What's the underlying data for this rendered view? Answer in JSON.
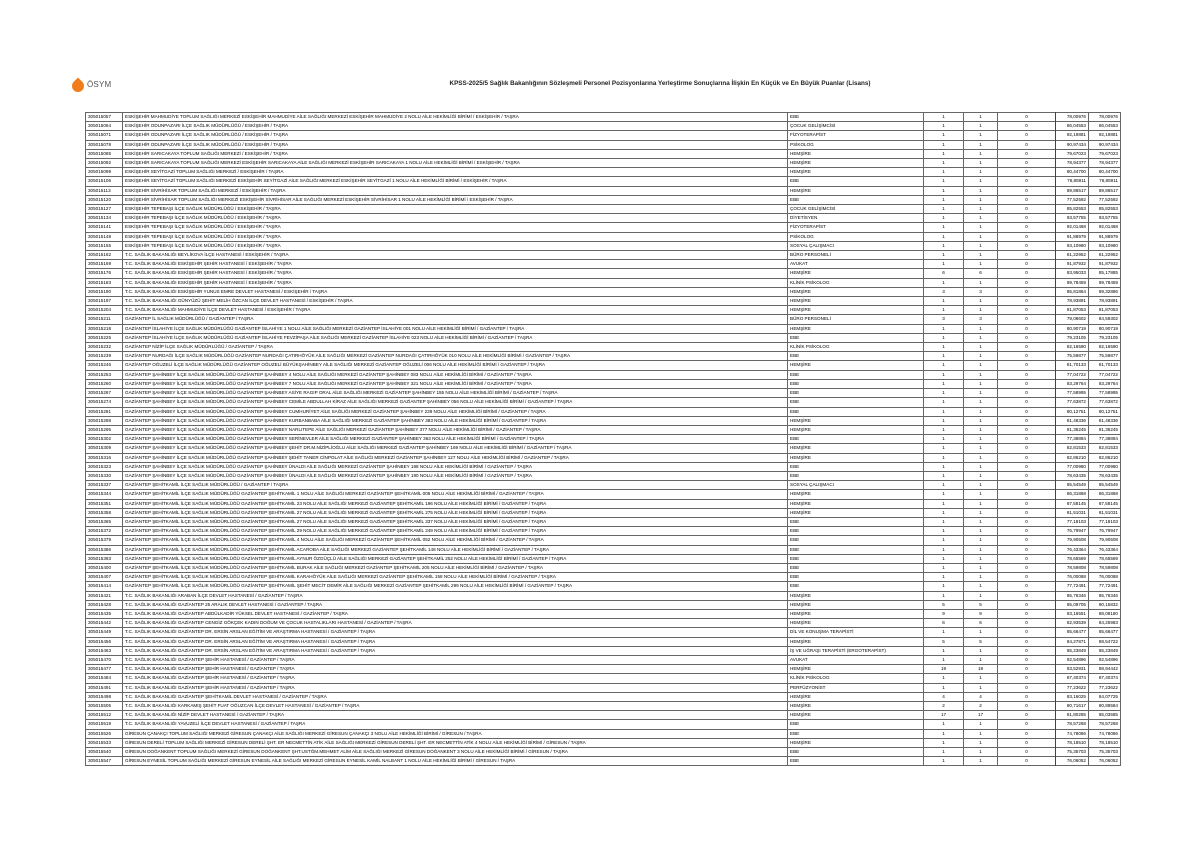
{
  "header": {
    "logo_text": "ÖSYM",
    "title": "KPSS-2025/5 Sağlık Bakanlığının Sözleşmeli Personel Pozisyonlarına Yerleştirme Sonuçlarına İlişkin En Küçük ve En Büyük Puanlar (Lisans)",
    "brand_color": "#f07c1c"
  },
  "rows": [
    [
      "305015057",
      "ESKİŞEHİR MAHMUDİYE TOPLUM SAĞLIĞI MERKEZİ ESKİŞEHİR MAHMUDİYE AİLE SAĞLIĞI MERKEZİ ESKİŞEHİR MAHMUDİYE 2 NOLU AİLE HEKİMLİĞİ BİRİMİ / ESKİŞEHİR / TAŞRA",
      "EBE",
      "1",
      "1",
      "0",
      "78,00976",
      "78,00976"
    ],
    [
      "305015064",
      "ESKİŞEHİR ODUNPAZARI İLÇE SAĞLIK MÜDÜRLÜĞÜ / ESKİŞEHİR / TAŞRA",
      "ÇOCUK GELİŞİMCİSİ",
      "1",
      "1",
      "0",
      "86,04553",
      "86,04553"
    ],
    [
      "305015071",
      "ESKİŞEHİR ODUNPAZARI İLÇE SAĞLIK MÜDÜRLÜĞÜ / ESKİŞEHİR / TAŞRA",
      "FİZYOTERAPİST",
      "1",
      "1",
      "0",
      "92,19881",
      "92,19881"
    ],
    [
      "305015078",
      "ESKİŞEHİR ODUNPAZARI İLÇE SAĞLIK MÜDÜRLÜĞÜ / ESKİŞEHİR / TAŞRA",
      "PSİKOLOG",
      "1",
      "1",
      "0",
      "90,97434",
      "90,97434"
    ],
    [
      "305015085",
      "ESKİŞEHİR SARICAKAYA TOPLUM SAĞLIĞI MERKEZİ / ESKİŞEHİR / TAŞRA",
      "HEMŞİRE",
      "1",
      "1",
      "0",
      "79,67023",
      "79,67023"
    ],
    [
      "305015092",
      "ESKİŞEHİR SARICAKAYA TOPLUM SAĞLIĞI MERKEZİ ESKİŞEHİR SARICAKAYA AİLE SAĞLIĞI MERKEZİ ESKİŞEHİR SARICAKAYA 1 NOLU AİLE HEKİMLİĞİ BİRİMİ / ESKİŞEHİR / TAŞRA",
      "HEMŞİRE",
      "1",
      "1",
      "0",
      "78,94377",
      "78,94377"
    ],
    [
      "305015099",
      "ESKİŞEHİR SEYİTGAZİ TOPLUM SAĞLIĞI MERKEZİ / ESKİŞEHİR / TAŞRA",
      "HEMŞİRE",
      "1",
      "1",
      "0",
      "80,44700",
      "80,44700"
    ],
    [
      "305015106",
      "ESKİŞEHİR SEYİTGAZİ TOPLUM SAĞLIĞI MERKEZİ ESKİŞEHİR SEYİTGAZİ AİLE SAĞLIĞI MERKEZİ ESKİŞEHİR SEYİTGAZİ 1 NOLU AİLE HEKİMLİĞİ BİRİMİ / ESKİŞEHİR / TAŞRA",
      "EBE",
      "1",
      "1",
      "0",
      "76,85911",
      "76,85911"
    ],
    [
      "305015113",
      "ESKİŞEHİR SİVRİHİSAR TOPLUM SAĞLIĞI MERKEZİ / ESKİŞEHİR / TAŞRA",
      "HEMŞİRE",
      "1",
      "1",
      "0",
      "89,86517",
      "89,86517"
    ],
    [
      "305015120",
      "ESKİŞEHİR SİVRİHİSAR TOPLUM SAĞLIĞI MERKEZİ ESKİŞEHİR SİVRİHİSAR AİLE SAĞLIĞI MERKEZİ ESKİŞEHİR SİVRİHİSAR 1 NOLU AİLE HEKİMLİĞİ BİRİMİ / ESKİŞEHİR / TAŞRA",
      "EBE",
      "1",
      "1",
      "0",
      "77,52592",
      "77,52592"
    ],
    [
      "305015127",
      "ESKİŞEHİR TEPEBAŞI İLÇE SAĞLIK MÜDÜRLÜĞÜ / ESKİŞEHİR / TAŞRA",
      "ÇOCUK GELİŞİMCİSİ",
      "1",
      "1",
      "0",
      "85,82553",
      "85,82553"
    ],
    [
      "305015134",
      "ESKİŞEHİR TEPEBAŞI İLÇE SAĞLIK MÜDÜRLÜĞÜ / ESKİŞEHİR / TAŞRA",
      "DİYETİSYEN",
      "1",
      "1",
      "0",
      "93,57755",
      "93,57755"
    ],
    [
      "305015141",
      "ESKİŞEHİR TEPEBAŞI İLÇE SAĞLIK MÜDÜRLÜĞÜ / ESKİŞEHİR / TAŞRA",
      "FİZYOTERAPİST",
      "1",
      "1",
      "0",
      "92,01468",
      "92,01468"
    ],
    [
      "305015148",
      "ESKİŞEHİR TEPEBAŞI İLÇE SAĞLIK MÜDÜRLÜĞÜ / ESKİŞEHİR / TAŞRA",
      "PSİKOLOG",
      "1",
      "1",
      "0",
      "91,88979",
      "91,88979"
    ],
    [
      "305015155",
      "ESKİŞEHİR TEPEBAŞI İLÇE SAĞLIK MÜDÜRLÜĞÜ / ESKİŞEHİR / TAŞRA",
      "SOSYAL ÇALIŞMACI",
      "1",
      "1",
      "0",
      "93,10980",
      "93,10980"
    ],
    [
      "305015162",
      "T.C. SAĞLIK BAKANLIĞI BEYLİKOVA İLÇE HASTANESİ / ESKİŞEHİR / TAŞRA",
      "BÜRO PERSONELİ",
      "1",
      "1",
      "0",
      "81,22952",
      "81,22952"
    ],
    [
      "305015169",
      "T.C. SAĞLIK BAKANLIĞI ESKİŞEHİR ŞEHİR HASTANESİ / ESKİŞEHİR / TAŞRA",
      "AVUKAT",
      "1",
      "1",
      "0",
      "91,87932",
      "91,87932"
    ],
    [
      "305015176",
      "T.C. SAĞLIK BAKANLIĞI ESKİŞEHİR ŞEHİR HASTANESİ / ESKİŞEHİR / TAŞRA",
      "HEMŞİRE",
      "6",
      "6",
      "0",
      "83,95033",
      "85,17885"
    ],
    [
      "305015183",
      "T.C. SAĞLIK BAKANLIĞI ESKİŞEHİR ŞEHİR HASTANESİ / ESKİŞEHİR / TAŞRA",
      "KLİNİK PSİKOLOG",
      "1",
      "1",
      "0",
      "89,78459",
      "89,78459"
    ],
    [
      "305015190",
      "T.C. SAĞLIK BAKANLIĞI ESKİŞEHİR YUNUS EMRE DEVLET HASTANESİ / ESKİŞEHİR / TAŞRA",
      "HEMŞİRE",
      "3",
      "3",
      "0",
      "85,81864",
      "89,32886"
    ],
    [
      "305015197",
      "T.C. SAĞLIK BAKANLIĞI GÜNYÜZÜ ŞEHİT MELİH ÖZCAN İLÇE DEVLET HASTANESİ / ESKİŞEHİR / TAŞRA",
      "HEMŞİRE",
      "1",
      "1",
      "0",
      "78,93891",
      "78,93891"
    ],
    [
      "305015204",
      "T.C. SAĞLIK BAKANLIĞI MAHMUDİYE İLÇE DEVLET HASTANESİ / ESKİŞEHİR / TAŞRA",
      "HEMŞİRE",
      "1",
      "1",
      "0",
      "81,87053",
      "81,87053"
    ],
    [
      "305015211",
      "GAZİANTEP İL SAĞLIK MÜDÜRLÜĞÜ / GAZİANTEP / TAŞRA",
      "BÜRO PERSONELİ",
      "3",
      "3",
      "0",
      "79,08602",
      "84,59302"
    ],
    [
      "305015218",
      "GAZİANTEP İSLAHİYE İLÇE SAĞLIK MÜDÜRLÜĞÜ GAZİANTEP İSLAHİYE 1 NOLU AİLE SAĞLIĞI MERKEZİ GAZİANTEP İSLAHİYE 001 NOLU AİLE HEKİMLİĞİ BİRİMİ / GAZİANTEP / TAŞRA",
      "HEMŞİRE",
      "1",
      "1",
      "0",
      "80,90719",
      "80,90719"
    ],
    [
      "305015225",
      "GAZİANTEP İSLAHİYE İLÇE SAĞLIK MÜDÜRLÜĞÜ GAZİANTEP İSLAHİYE FEVZİPAŞA AİLE SAĞLIĞI MERKEZİ GAZİANTEP İSLAHİYE 023 NOLU AİLE HEKİMLİĞİ BİRİMİ / GAZİANTEP / TAŞRA",
      "EBE",
      "1",
      "1",
      "0",
      "79,23105",
      "79,23105"
    ],
    [
      "305015232",
      "GAZİANTEP NİZİP İLÇE SAĞLIK MÜDÜRLÜĞÜ / GAZİANTEP / TAŞRA",
      "KLİNİK PSİKOLOG",
      "1",
      "1",
      "0",
      "82,16590",
      "82,16590"
    ],
    [
      "305015239",
      "GAZİANTEP NURDAĞI İLÇE SAĞLIK MÜDÜRLÜĞÜ GAZİANTEP NURDAĞI ÇATIRHÖYÜK AİLE SAĞLIĞI MERKEZİ GAZİANTEP NURDAĞI ÇATIRHÖYÜK 010 NOLU AİLE HEKİMLİĞİ BİRİMİ / GAZİANTEP / TAŞRA",
      "EBE",
      "1",
      "1",
      "0",
      "75,59877",
      "75,59877"
    ],
    [
      "305015246",
      "GAZİANTEP OĞUZELİ İLÇE SAĞLIK MÜDÜRLÜĞÜ GAZİANTEP OĞUZELİ BÜYÜKŞAHİNBEY AİLE SAĞLIĞI MERKEZİ GAZİANTEP OĞUZELİ 006 NOLU AİLE HEKİMLİĞİ BİRİMİ / GAZİANTEP / TAŞRA",
      "HEMŞİRE",
      "1",
      "1",
      "0",
      "81,70133",
      "81,70133"
    ],
    [
      "305015253",
      "GAZİANTEP ŞAHİNBEY İLÇE SAĞLIK MÜDÜRLÜĞÜ GAZİANTEP ŞAHİNBEY 4 NOLU AİLE SAĞLIĞI MERKEZİ GAZİANTEP ŞAHİNBEY 083 NOLU AİLE HEKİMLİĞİ BİRİMİ / GAZİANTEP / TAŞRA",
      "EBE",
      "1",
      "1",
      "0",
      "77,04722",
      "77,04722"
    ],
    [
      "305015260",
      "GAZİANTEP ŞAHİNBEY İLÇE SAĞLIK MÜDÜRLÜĞÜ GAZİANTEP ŞAHİNBEY 7 NOLU AİLE SAĞLIĞI MERKEZİ GAZİANTEP ŞAHİNBEY 321 NOLU AİLE HEKİMLİĞİ BİRİMİ / GAZİANTEP / TAŞRA",
      "EBE",
      "1",
      "1",
      "0",
      "83,29764",
      "83,29764"
    ],
    [
      "305015267",
      "GAZİANTEP ŞAHİNBEY İLÇE SAĞLIK MÜDÜRLÜĞÜ GAZİANTEP ŞAHİNBEY ASİYE RAGIP ORAL AİLE SAĞLIĞI MERKEZİ GAZİANTEP ŞAHİNBEY 155 NOLU AİLE HEKİMLİĞİ BİRİMİ / GAZİANTEP / TAŞRA",
      "EBE",
      "1",
      "1",
      "0",
      "77,58995",
      "77,58995"
    ],
    [
      "305015274",
      "GAZİANTEP ŞAHİNBEY İLÇE SAĞLIK MÜDÜRLÜĞÜ GAZİANTEP ŞAHİNBEY CEMİLE ABDULLAH KİRAZ AİLE SAĞLIĞI MERKEZİ GAZİANTEP ŞAHİNBEY 056 NOLU AİLE HEKİMLİĞİ BİRİMİ / GAZİANTEP / TAŞRA",
      "EBE",
      "1",
      "1",
      "0",
      "77,63872",
      "77,63872"
    ],
    [
      "305015281",
      "GAZİANTEP ŞAHİNBEY İLÇE SAĞLIK MÜDÜRLÜĞÜ GAZİANTEP ŞAHİNBEY CUMHURİYET AİLE SAĞLIĞI MERKEZİ GAZİANTEP ŞAHİNBEY 239 NOLU AİLE HEKİMLİĞİ BİRİMİ / GAZİANTEP / TAŞRA",
      "EBE",
      "1",
      "1",
      "0",
      "80,12751",
      "80,12751"
    ],
    [
      "305015288",
      "GAZİANTEP ŞAHİNBEY İLÇE SAĞLIK MÜDÜRLÜĞÜ GAZİANTEP ŞAHİNBEY KURBANBABA AİLE SAĞLIĞI MERKEZİ GAZİANTEP ŞAHİNBEY 383 NOLU AİLE HEKİMLİĞİ BİRİMİ / GAZİANTEP / TAŞRA",
      "HEMŞİRE",
      "1",
      "1",
      "0",
      "81,48336",
      "81,48336"
    ],
    [
      "305015295",
      "GAZİANTEP ŞAHİNBEY İLÇE SAĞLIK MÜDÜRLÜĞÜ GAZİANTEP ŞAHİNBEY NARLITEPE AİLE SAĞLIĞI MERKEZİ GAZİANTEP ŞAHİNBEY 377 NOLU AİLE HEKİMLİĞİ BİRİMİ / GAZİANTEP / TAŞRA",
      "HEMŞİRE",
      "1",
      "1",
      "0",
      "81,36245",
      "81,36245"
    ],
    [
      "305015302",
      "GAZİANTEP ŞAHİNBEY İLÇE SAĞLIK MÜDÜRLÜĞÜ GAZİANTEP ŞAHİNBEY SERİNEVLER AİLE SAĞLIĞI MERKEZİ GAZİANTEP ŞAHİNBEY 363 NOLU AİLE HEKİMLİĞİ BİRİMİ / GAZİANTEP / TAŞRA",
      "EBE",
      "1",
      "1",
      "0",
      "77,38894",
      "77,38894"
    ],
    [
      "305015309",
      "GAZİANTEP ŞAHİNBEY İLÇE SAĞLIK MÜDÜRLÜĞÜ GAZİANTEP ŞAHİNBEY ŞEHİT DR.M.NİZİPLİOĞLU AİLE SAĞLIĞI MERKEZİ GAZİANTEP ŞAHİNBEY 169 NOLU AİLE HEKİMLİĞİ BİRİMİ / GAZİANTEP / TAŞRA",
      "HEMŞİRE",
      "1",
      "1",
      "0",
      "82,81533",
      "82,81533"
    ],
    [
      "305015316",
      "GAZİANTEP ŞAHİNBEY İLÇE SAĞLIK MÜDÜRLÜĞÜ GAZİANTEP ŞAHİNBEY ŞEHİT TANER CİNPOLAT AİLE SAĞLIĞI MERKEZİ GAZİANTEP ŞAHİNBEY 127 NOLU AİLE HEKİMLİĞİ BİRİMİ / GAZİANTEP / TAŞRA",
      "HEMŞİRE",
      "1",
      "1",
      "0",
      "82,86210",
      "82,86210"
    ],
    [
      "305015323",
      "GAZİANTEP ŞAHİNBEY İLÇE SAĞLIK MÜDÜRLÜĞÜ GAZİANTEP ŞAHİNBEY ÜNALDI AİLE SAĞLIĞI MERKEZİ GAZİANTEP ŞAHİNBEY 188 NOLU AİLE HEKİMLİĞİ BİRİMİ / GAZİANTEP / TAŞRA",
      "EBE",
      "1",
      "1",
      "0",
      "77,00980",
      "77,00980"
    ],
    [
      "305015330",
      "GAZİANTEP ŞAHİNBEY İLÇE SAĞLIK MÜDÜRLÜĞÜ GAZİANTEP ŞAHİNBEY ÜNALDI AİLE SAĞLIĞI MERKEZİ GAZİANTEP ŞAHİNBEY 190 NOLU AİLE HEKİMLİĞİ BİRİMİ / GAZİANTEP / TAŞRA",
      "EBE",
      "1",
      "1",
      "0",
      "78,63435",
      "78,63435"
    ],
    [
      "305015337",
      "GAZİANTEP ŞEHİTKAMİL İLÇE SAĞLIK MÜDÜRLÜĞÜ / GAZİANTEP / TAŞRA",
      "SOSYAL ÇALIŞMACI",
      "1",
      "1",
      "0",
      "85,54549",
      "85,54549"
    ],
    [
      "305015344",
      "GAZİANTEP ŞEHİTKAMİL İLÇE SAĞLIK MÜDÜRLÜĞÜ GAZİANTEP ŞEHİTKAMİL 1 NOLU AİLE SAĞLIĞI MERKEZİ GAZİANTEP ŞEHİTKAMİL 006 NOLU AİLE HEKİMLİĞİ BİRİMİ / GAZİANTEP / TAŞRA",
      "HEMŞİRE",
      "1",
      "1",
      "0",
      "86,31868",
      "86,31868"
    ],
    [
      "305015351",
      "GAZİANTEP ŞEHİTKAMİL İLÇE SAĞLIK MÜDÜRLÜĞÜ GAZİANTEP ŞEHİTKAMİL 23 NOLU AİLE SAĞLIĞI MERKEZİ GAZİANTEP ŞEHİTKAMİL 196 NOLU AİLE HEKİMLİĞİ BİRİMİ / GAZİANTEP / TAŞRA",
      "HEMŞİRE",
      "1",
      "1",
      "0",
      "87,58145",
      "87,58145"
    ],
    [
      "305015358",
      "GAZİANTEP ŞEHİTKAMİL İLÇE SAĞLIK MÜDÜRLÜĞÜ GAZİANTEP ŞEHİTKAMİL 27 NOLU AİLE SAĞLIĞI MERKEZİ GAZİANTEP ŞEHİTKAMİL 275 NOLU AİLE HEKİMLİĞİ BİRİMİ / GAZİANTEP / TAŞRA",
      "HEMŞİRE",
      "1",
      "1",
      "0",
      "81,51031",
      "81,51031"
    ],
    [
      "305015365",
      "GAZİANTEP ŞEHİTKAMİL İLÇE SAĞLIK MÜDÜRLÜĞÜ GAZİANTEP ŞEHİTKAMİL 27 NOLU AİLE SAĞLIĞI MERKEZİ GAZİANTEP ŞEHİTKAMİL 337 NOLU AİLE HEKİMLİĞİ BİRİMİ / GAZİANTEP / TAŞRA",
      "EBE",
      "1",
      "1",
      "0",
      "77,18103",
      "77,18103"
    ],
    [
      "305015372",
      "GAZİANTEP ŞEHİTKAMİL İLÇE SAĞLIK MÜDÜRLÜĞÜ GAZİANTEP ŞEHİTKAMİL 29 NOLU AİLE SAĞLIĞI MERKEZİ GAZİANTEP ŞEHİTKAMİL 249 NOLU AİLE HEKİMLİĞİ BİRİMİ / GAZİANTEP / TAŞRA",
      "EBE",
      "1",
      "1",
      "0",
      "76,79947",
      "76,79947"
    ],
    [
      "305015379",
      "GAZİANTEP ŞEHİTKAMİL İLÇE SAĞLIK MÜDÜRLÜĞÜ GAZİANTEP ŞEHİTKAMİL 4 NOLU AİLE SAĞLIĞI MERKEZİ GAZİANTEP ŞEHİTKAMİL 052 NOLU AİLE HEKİMLİĞİ BİRİMİ / GAZİANTEP / TAŞRA",
      "EBE",
      "1",
      "1",
      "0",
      "79,90508",
      "79,90508"
    ],
    [
      "305015386",
      "GAZİANTEP ŞEHİTKAMİL İLÇE SAĞLIK MÜDÜRLÜĞÜ GAZİANTEP ŞEHİTKAMİL ACAROBA AİLE SAĞLIĞI MERKEZİ GAZİANTEP ŞEHİTKAMİL 148 NOLU AİLE HEKİMLİĞİ BİRİMİ / GAZİANTEP / TAŞRA",
      "EBE",
      "1",
      "1",
      "0",
      "76,43364",
      "76,43364"
    ],
    [
      "305015393",
      "GAZİANTEP ŞEHİTKAMİL İLÇE SAĞLIK MÜDÜRLÜĞÜ GAZİANTEP ŞEHİTKAMİL AYNUR ÖZGÜÇLÜ AİLE SAĞLIĞI MERKEZİ GAZİANTEP ŞEHİTKAMİL 252 NOLU AİLE HEKİMLİĞİ BİRİMİ / GAZİANTEP / TAŞRA",
      "EBE",
      "1",
      "1",
      "0",
      "78,65569",
      "78,65569"
    ],
    [
      "305015400",
      "GAZİANTEP ŞEHİTKAMİL İLÇE SAĞLIK MÜDÜRLÜĞÜ GAZİANTEP ŞEHİTKAMİL BURAK AİLE SAĞLIĞI MERKEZİ GAZİANTEP ŞEHİTKAMİL 205 NOLU AİLE HEKİMLİĞİ BİRİMİ / GAZİANTEP / TAŞRA",
      "EBE",
      "1",
      "1",
      "0",
      "78,59808",
      "78,59808"
    ],
    [
      "305015407",
      "GAZİANTEP ŞEHİTKAMİL İLÇE SAĞLIK MÜDÜRLÜĞÜ GAZİANTEP ŞEHİTKAMİL KARAHÖYÜK AİLE SAĞLIĞI MERKEZİ GAZİANTEP ŞEHİTKAMİL 158 NOLU AİLE HEKİMLİĞİ BİRİMİ / GAZİANTEP / TAŞRA",
      "EBE",
      "1",
      "1",
      "0",
      "76,00088",
      "76,00088"
    ],
    [
      "305015414",
      "GAZİANTEP ŞEHİTKAMİL İLÇE SAĞLIK MÜDÜRLÜĞÜ GAZİANTEP ŞEHİTKAMİL ŞEHİT MECİT DEMİR AİLE SAĞLIĞI MERKEZİ GAZİANTEP ŞEHİTKAMİL 299 NOLU AİLE HEKİMLİĞİ BİRİMİ / GAZİANTEP / TAŞRA",
      "EBE",
      "1",
      "1",
      "0",
      "77,72491",
      "77,72491"
    ],
    [
      "305015421",
      "T.C. SAĞLIK BAKANLIĞI ARABAN İLÇE DEVLET HASTANESİ / GAZİANTEP / TAŞRA",
      "HEMŞİRE",
      "1",
      "1",
      "0",
      "85,76346",
      "85,76346"
    ],
    [
      "305015428",
      "T.C. SAĞLIK BAKANLIĞI GAZİANTEP 25 ARALIK DEVLET HASTANESİ / GAZİANTEP / TAŞRA",
      "HEMŞİRE",
      "5",
      "5",
      "0",
      "85,09705",
      "90,15832"
    ],
    [
      "305015435",
      "T.C. SAĞLIK BAKANLIĞI GAZİANTEP ABDÜLKADİR YÜKSEL DEVLET HASTANESİ / GAZİANTEP / TAŞRA",
      "HEMŞİRE",
      "9",
      "9",
      "0",
      "83,16551",
      "88,08180"
    ],
    [
      "305015442",
      "T.C. SAĞLIK BAKANLIĞI GAZİANTEP CENGİZ GÖKÇEK KADIN DOĞUM VE ÇOCUK HASTALIKLARI HASTANESİ / GAZİANTEP / TAŞRA",
      "HEMŞİRE",
      "6",
      "6",
      "0",
      "82,93539",
      "84,25983"
    ],
    [
      "305015449",
      "T.C. SAĞLIK BAKANLIĞI GAZİANTEP DR. ERSİN ARSLAN EĞİTİM VE ARAŞTIRMA HASTANESİ / GAZİANTEP / TAŞRA",
      "DİL VE KONUŞMA TERAPİSTİ",
      "1",
      "1",
      "0",
      "85,66477",
      "85,66477"
    ],
    [
      "305015456",
      "T.C. SAĞLIK BAKANLIĞI GAZİANTEP DR. ERSİN ARSLAN EĞİTİM VE ARAŞTIRMA HASTANESİ / GAZİANTEP / TAŞRA",
      "HEMŞİRE",
      "5",
      "5",
      "0",
      "84,27871",
      "88,54722"
    ],
    [
      "305015463",
      "T.C. SAĞLIK BAKANLIĞI GAZİANTEP DR. ERSİN ARSLAN EĞİTİM VE ARAŞTIRMA HASTANESİ / GAZİANTEP / TAŞRA",
      "İŞ VE UĞRAŞI TERAPİSTİ (ERGOTERAPİST)",
      "1",
      "1",
      "0",
      "85,23849",
      "85,23849"
    ],
    [
      "305015470",
      "T.C. SAĞLIK BAKANLIĞI GAZİANTEP ŞEHİR HASTANESİ / GAZİANTEP / TAŞRA",
      "AVUKAT",
      "1",
      "1",
      "0",
      "92,54896",
      "92,54896"
    ],
    [
      "305015477",
      "T.C. SAĞLIK BAKANLIĞI GAZİANTEP ŞEHİR HASTANESİ / GAZİANTEP / TAŞRA",
      "HEMŞİRE",
      "19",
      "19",
      "0",
      "83,52931",
      "88,94442"
    ],
    [
      "305015484",
      "T.C. SAĞLIK BAKANLIĞI GAZİANTEP ŞEHİR HASTANESİ / GAZİANTEP / TAŞRA",
      "KLİNİK PSİKOLOG",
      "1",
      "1",
      "0",
      "87,40374",
      "87,40374"
    ],
    [
      "305015491",
      "T.C. SAĞLIK BAKANLIĞI GAZİANTEP ŞEHİR HASTANESİ / GAZİANTEP / TAŞRA",
      "PERFÜZYONİST",
      "1",
      "1",
      "0",
      "77,23622",
      "77,23622"
    ],
    [
      "305015498",
      "T.C. SAĞLIK BAKANLIĞI GAZİANTEP ŞEHİTKAMİL DEVLET HASTANESİ / GAZİANTEP / TAŞRA",
      "HEMŞİRE",
      "4",
      "4",
      "0",
      "83,16025",
      "84,07725"
    ],
    [
      "305015505",
      "T.C. SAĞLIK BAKANLIĞI KARKAMIŞ ŞEHİT FUAT OĞUZCAN İLÇE DEVLET HASTANESİ / GAZİANTEP / TAŞRA",
      "HEMŞİRE",
      "2",
      "2",
      "0",
      "80,71617",
      "80,89584"
    ],
    [
      "305015512",
      "T.C. SAĞLIK BAKANLIĞI NİZİP DEVLET HASTANESİ / GAZİANTEP / TAŞRA",
      "HEMŞİRE",
      "17",
      "17",
      "0",
      "81,80285",
      "85,03585"
    ],
    [
      "305015519",
      "T.C. SAĞLIK BAKANLIĞI YAVUZELİ İLÇE DEVLET HASTANESİ / GAZİANTEP / TAŞRA",
      "EBE",
      "1",
      "1",
      "0",
      "78,57268",
      "78,57268"
    ],
    [
      "305015526",
      "GİRESUN ÇANAKÇI TOPLUM SAĞLIĞI MERKEZİ GİRESUN ÇANAKÇI AİLE SAĞLIĞI MERKEZİ GİRESUN ÇANAKÇI 3 NOLU AİLE HEKİMLİĞİ BİRİMİ / GİRESUN / TAŞRA",
      "EBE",
      "1",
      "1",
      "0",
      "74,78086",
      "74,78086"
    ],
    [
      "305015533",
      "GİRESUN DERELİ TOPLUM SAĞLIĞI MERKEZİ GİRESUN DERELİ ŞHT. ER NECMETTİN ATİK AİLE SAĞLIĞI MERKEZİ GİRESUN DERELİ ŞHT. ER NECMETTİN ATİK 4 NOLU AİLE HEKİMLİĞİ BİRİMİ / GİRESUN / TAŞRA",
      "HEMŞİRE",
      "1",
      "1",
      "0",
      "78,18510",
      "78,18510"
    ],
    [
      "305015540",
      "GİRESUN DOĞANKENT TOPLUM SAĞLIĞI MERKEZİ GİRESUN DOĞANKENT ŞHT.USTĞM.MEHMET ALİM AİLE SAĞLIĞI MERKEZİ GİRESUN DOĞANKENT 3 NOLU AİLE HEKİMLİĞİ BİRİMİ / GİRESUN / TAŞRA",
      "EBE",
      "1",
      "1",
      "0",
      "75,35703",
      "75,35703"
    ],
    [
      "305015547",
      "GİRESUN EYNESİL TOPLUM SAĞLIĞI MERKEZİ GİRESUN EYNESİL AİLE SAĞLIĞI MERKEZİ GİRESUN EYNESİL KAMİL NALBANT 1 NOLU AİLE HEKİMLİĞİ BİRİMİ / GİRESUN / TAŞRA",
      "EBE",
      "1",
      "1",
      "0",
      "76,06052",
      "76,06052"
    ]
  ]
}
